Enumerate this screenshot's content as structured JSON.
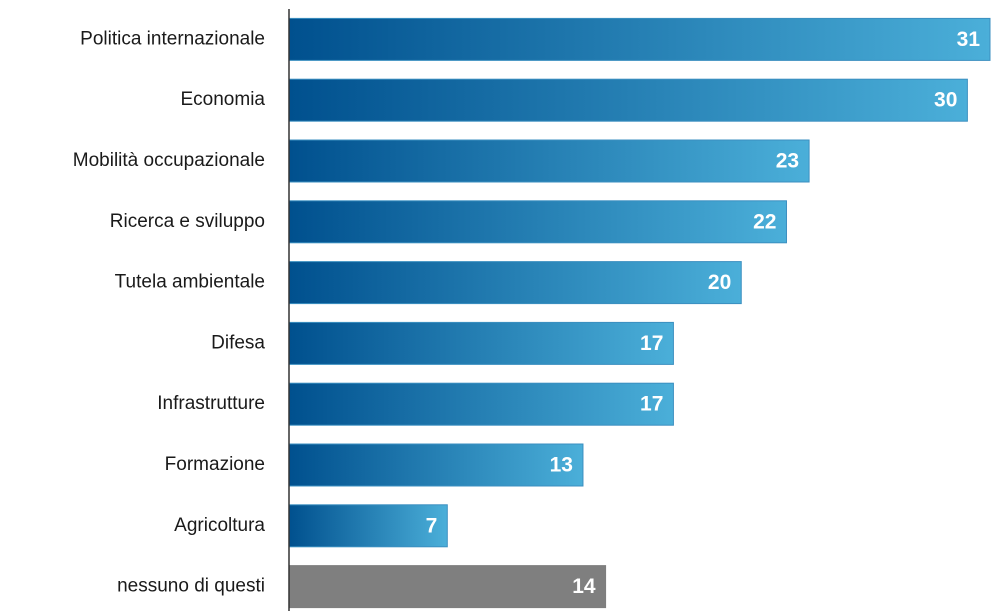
{
  "chart_data": {
    "type": "bar",
    "orientation": "horizontal",
    "categories": [
      "Politica internazionale",
      "Economia",
      "Mobilità occupazionale",
      "Ricerca e sviluppo",
      "Tutela ambientale",
      "Difesa",
      "Infrastrutture",
      "Formazione",
      "Agricoltura",
      "nessuno di questi"
    ],
    "values": [
      31,
      30,
      23,
      22,
      20,
      17,
      17,
      13,
      7,
      14
    ],
    "gradient_start": "#00508e",
    "colors": [
      "#4bafd9",
      "#4bafd9",
      "#4bafd9",
      "#4bafd9",
      "#4bafd9",
      "#4bafd9",
      "#4bafd9",
      "#4bafd9",
      "#4bafd9",
      "#7f7f7f"
    ]
  }
}
